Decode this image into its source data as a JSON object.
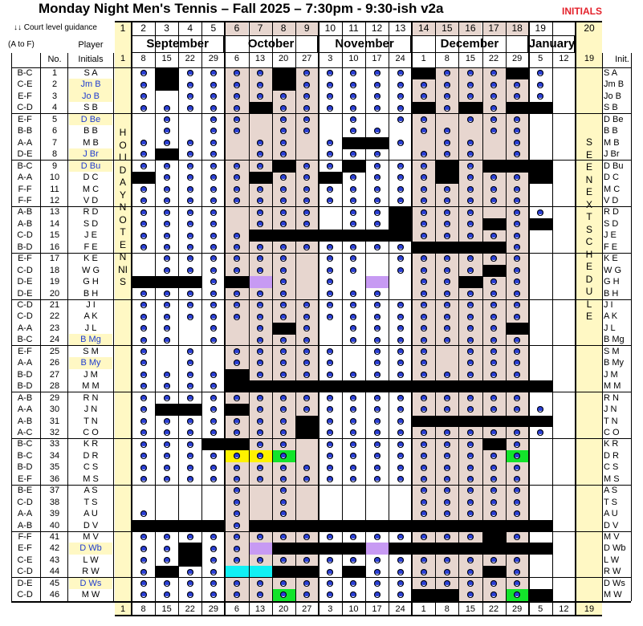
{
  "header": {
    "title": "Monday Night Men's Tennis  –  Fall 2025  –  7:30pm - 9:30-ish   v2a",
    "initials_badge": "INITIALS",
    "guidance": "↓↓ Court level guidance",
    "guidance_range": "(A to F)",
    "col_no": "No.",
    "col_player": "Player",
    "col_initials": "Initials",
    "col_init_right": "Init."
  },
  "weeks": [
    "1",
    "2",
    "3",
    "4",
    "5",
    "6",
    "7",
    "8",
    "9",
    "10",
    "11",
    "12",
    "13",
    "14",
    "15",
    "16",
    "17",
    "18",
    "19",
    "20"
  ],
  "months": [
    {
      "label": "September",
      "start": 1,
      "end": 4
    },
    {
      "label": "October",
      "start": 5,
      "end": 8
    },
    {
      "label": "November",
      "start": 9,
      "end": 12
    },
    {
      "label": "December",
      "start": 13,
      "end": 17
    },
    {
      "label": "January",
      "start": 18,
      "end": 19
    }
  ],
  "days": [
    "8",
    "15",
    "22",
    "29",
    "6",
    "13",
    "20",
    "27",
    "3",
    "10",
    "17",
    "24",
    "1",
    "8",
    "15",
    "22",
    "29",
    "5",
    "12"
  ],
  "first_day": "1",
  "last_day": "19",
  "holiday_text": "HOLIDAY  NO  TENNIS",
  "see_next_text": "SEE  NEXT  SCHEDULE",
  "players": [
    {
      "lvl": "B-C",
      "no": "1",
      "ini": "S A",
      "hl": false,
      "rini": "S A"
    },
    {
      "lvl": "C-E",
      "no": "2",
      "ini": "Jm B",
      "hl": true,
      "rini": "Jm B"
    },
    {
      "lvl": "E-F",
      "no": "3",
      "ini": "Jo B",
      "hl": true,
      "rini": "Jo B"
    },
    {
      "lvl": "C-D",
      "no": "4",
      "ini": "S B",
      "hl": false,
      "rini": "S B"
    },
    {
      "lvl": "E-F",
      "no": "5",
      "ini": "D Be",
      "hl": true,
      "rini": "D Be"
    },
    {
      "lvl": "B-B",
      "no": "6",
      "ini": "B B",
      "hl": false,
      "rini": "B B"
    },
    {
      "lvl": "A-A",
      "no": "7",
      "ini": "M B",
      "hl": false,
      "rini": "M B"
    },
    {
      "lvl": "D-E",
      "no": "8",
      "ini": "J Br",
      "hl": true,
      "rini": "J Br"
    },
    {
      "lvl": "B-C",
      "no": "9",
      "ini": "D Bu",
      "hl": true,
      "rini": "D Bu"
    },
    {
      "lvl": "A-A",
      "no": "10",
      "ini": "D C",
      "hl": false,
      "rini": "D C"
    },
    {
      "lvl": "F-F",
      "no": "11",
      "ini": "M C",
      "hl": false,
      "rini": "M C"
    },
    {
      "lvl": "F-F",
      "no": "12",
      "ini": "V D",
      "hl": false,
      "rini": "V D"
    },
    {
      "lvl": "A-B",
      "no": "13",
      "ini": "R D",
      "hl": false,
      "rini": "R D"
    },
    {
      "lvl": "A-B",
      "no": "14",
      "ini": "S D",
      "hl": false,
      "rini": "S D"
    },
    {
      "lvl": "C-D",
      "no": "15",
      "ini": "J E",
      "hl": false,
      "rini": "J E"
    },
    {
      "lvl": "B-D",
      "no": "16",
      "ini": "F E",
      "hl": false,
      "rini": "F E"
    },
    {
      "lvl": "E-F",
      "no": "17",
      "ini": "K E",
      "hl": false,
      "rini": "K E"
    },
    {
      "lvl": "C-D",
      "no": "18",
      "ini": "W G",
      "hl": false,
      "rini": "W G"
    },
    {
      "lvl": "D-E",
      "no": "19",
      "ini": "G H",
      "hl": false,
      "rini": "G H"
    },
    {
      "lvl": "D-E",
      "no": "20",
      "ini": "B H",
      "hl": false,
      "rini": "B H"
    },
    {
      "lvl": "C-D",
      "no": "21",
      "ini": "J I",
      "hl": false,
      "rini": "J I"
    },
    {
      "lvl": "C-D",
      "no": "22",
      "ini": "A K",
      "hl": false,
      "rini": "A K"
    },
    {
      "lvl": "A-A",
      "no": "23",
      "ini": "J L",
      "hl": false,
      "rini": "J L"
    },
    {
      "lvl": "B-C",
      "no": "24",
      "ini": "B Mg",
      "hl": true,
      "rini": "B Mg"
    },
    {
      "lvl": "E-F",
      "no": "25",
      "ini": "S M",
      "hl": false,
      "rini": "S M"
    },
    {
      "lvl": "A-A",
      "no": "26",
      "ini": "B My",
      "hl": true,
      "rini": "B My"
    },
    {
      "lvl": "B-D",
      "no": "27",
      "ini": "J M",
      "hl": false,
      "rini": "J M"
    },
    {
      "lvl": "B-D",
      "no": "28",
      "ini": "M M",
      "hl": false,
      "rini": "M M"
    },
    {
      "lvl": "A-B",
      "no": "29",
      "ini": "R N",
      "hl": false,
      "rini": "R N"
    },
    {
      "lvl": "A-A",
      "no": "30",
      "ini": "J N",
      "hl": false,
      "rini": "J N"
    },
    {
      "lvl": "A-B",
      "no": "31",
      "ini": "T N",
      "hl": false,
      "rini": "T N"
    },
    {
      "lvl": "A-C",
      "no": "32",
      "ini": "C O",
      "hl": false,
      "rini": "C O"
    },
    {
      "lvl": "B-C",
      "no": "33",
      "ini": "K R",
      "hl": false,
      "rini": "K R"
    },
    {
      "lvl": "B-C",
      "no": "34",
      "ini": "D R",
      "hl": false,
      "rini": "D R"
    },
    {
      "lvl": "B-D",
      "no": "35",
      "ini": "C S",
      "hl": false,
      "rini": "C S"
    },
    {
      "lvl": "E-F",
      "no": "36",
      "ini": "M S",
      "hl": false,
      "rini": "M S"
    },
    {
      "lvl": "B-E",
      "no": "37",
      "ini": "A S",
      "hl": false,
      "rini": "A S"
    },
    {
      "lvl": "C-D",
      "no": "38",
      "ini": "T S",
      "hl": false,
      "rini": "T S"
    },
    {
      "lvl": "A-A",
      "no": "39",
      "ini": "A U",
      "hl": false,
      "rini": "A U"
    },
    {
      "lvl": "A-B",
      "no": "40",
      "ini": "D V",
      "hl": false,
      "rini": "D V"
    },
    {
      "lvl": "F-F",
      "no": "41",
      "ini": "M V",
      "hl": false,
      "rini": "M V"
    },
    {
      "lvl": "E-F",
      "no": "42",
      "ini": "D Wb",
      "hl": true,
      "rini": "D Wb"
    },
    {
      "lvl": "C-E",
      "no": "43",
      "ini": "L W",
      "hl": false,
      "rini": "L W"
    },
    {
      "lvl": "C-D",
      "no": "44",
      "ini": "R W",
      "hl": false,
      "rini": "R W"
    },
    {
      "lvl": "D-E",
      "no": "45",
      "ini": "D Ws",
      "hl": true,
      "rini": "D Ws"
    },
    {
      "lvl": "C-D",
      "no": "46",
      "ini": "M W",
      "hl": false,
      "rini": "M W"
    }
  ],
  "colors": {
    "title_red": "#e4212b",
    "holiday": "#fff8c4",
    "october": "#e7d6cf",
    "december": "#e7d6cf",
    "player_hl": "#fff8c4",
    "player_text_hl": "#1f3ccf",
    "dot": "#2a3fd6",
    "purple": "#c79af3",
    "yellow": "#fff200",
    "green": "#13e42b",
    "cyan": "#11f0f4"
  },
  "schedule": [
    [
      "d",
      "b",
      "d",
      "d",
      "d",
      "d",
      "b",
      "d",
      "d",
      "d",
      "d",
      "d",
      "b",
      "d",
      "d",
      "d",
      "b",
      "d",
      "",
      ""
    ],
    [
      "d",
      "b",
      "d",
      "d",
      "d",
      "d",
      "b",
      "d",
      "d",
      "d",
      "d",
      "d",
      "d",
      "d",
      "d",
      "d",
      "d",
      "d",
      "",
      ""
    ],
    [
      "d",
      "",
      "d",
      "d",
      "d",
      "d",
      "d",
      "d",
      "d",
      "d",
      "d",
      "d",
      "d",
      "d",
      "d",
      "d",
      "d",
      "d",
      "",
      ""
    ],
    [
      "d",
      "d",
      "d",
      "d",
      "d",
      "b",
      "d",
      "d",
      "d",
      "d",
      "d",
      "d",
      "b",
      "d",
      "b",
      "d",
      "b",
      "b",
      "",
      ""
    ],
    [
      "",
      "d",
      "",
      "d",
      "d",
      "",
      "d",
      "d",
      "",
      "d",
      "",
      "d",
      "d",
      "",
      "d",
      "d",
      "d",
      "",
      "",
      ""
    ],
    [
      "",
      "d",
      "",
      "d",
      "d",
      "",
      "d",
      "d",
      "",
      "d",
      "d",
      "",
      "d",
      "d",
      "",
      "d",
      "d",
      "",
      "",
      ""
    ],
    [
      "d",
      "d",
      "d",
      "d",
      "",
      "d",
      "d",
      "",
      "d",
      "b",
      "b",
      "d",
      "",
      "d",
      "d",
      "",
      "d",
      "",
      "",
      ""
    ],
    [
      "d",
      "b",
      "d",
      "d",
      "",
      "d",
      "d",
      "",
      "d",
      "d",
      "d",
      "",
      "d",
      "d",
      "d",
      "",
      "d",
      "",
      "",
      ""
    ],
    [
      "d",
      "d",
      "d",
      "d",
      "d",
      "d",
      "b",
      "d",
      "d",
      "b",
      "d",
      "d",
      "d",
      "b",
      "d",
      "b",
      "b",
      "b",
      "",
      ""
    ],
    [
      "b",
      "d",
      "d",
      "d",
      "d",
      "b",
      "d",
      "d",
      "b",
      "d",
      "d",
      "d",
      "d",
      "b",
      "d",
      "d",
      "d",
      "b",
      "",
      ""
    ],
    [
      "d",
      "d",
      "d",
      "d",
      "d",
      "d",
      "d",
      "d",
      "d",
      "d",
      "d",
      "d",
      "d",
      "d",
      "d",
      "d",
      "d",
      "",
      "",
      ""
    ],
    [
      "d",
      "d",
      "d",
      "d",
      "d",
      "d",
      "d",
      "d",
      "d",
      "d",
      "d",
      "d",
      "d",
      "d",
      "d",
      "d",
      "d",
      "",
      "",
      ""
    ],
    [
      "d",
      "d",
      "d",
      "d",
      "",
      "d",
      "d",
      "d",
      "",
      "d",
      "d",
      "b",
      "d",
      "d",
      "d",
      "",
      "d",
      "d",
      "",
      ""
    ],
    [
      "d",
      "d",
      "d",
      "d",
      "",
      "d",
      "d",
      "d",
      "",
      "d",
      "d",
      "b",
      "d",
      "d",
      "d",
      "b",
      "d",
      "b",
      "",
      ""
    ],
    [
      "d",
      "d",
      "d",
      "d",
      "d",
      "b",
      "b",
      "b",
      "b",
      "b",
      "b",
      "b",
      "d",
      "d",
      "d",
      "d",
      "d",
      "",
      "",
      ""
    ],
    [
      "d",
      "d",
      "d",
      "d",
      "d",
      "d",
      "d",
      "d",
      "d",
      "d",
      "d",
      "d",
      "b",
      "b",
      "b",
      "b",
      "d",
      "",
      "",
      ""
    ],
    [
      "",
      "d",
      "d",
      "d",
      "d",
      "d",
      "d",
      "",
      "d",
      "d",
      "",
      "d",
      "d",
      "d",
      "d",
      "d",
      "d",
      "",
      "",
      ""
    ],
    [
      "",
      "d",
      "d",
      "d",
      "d",
      "d",
      "d",
      "",
      "d",
      "d",
      "",
      "d",
      "d",
      "d",
      "d",
      "b",
      "d",
      "",
      "",
      ""
    ],
    [
      "b",
      "b",
      "b",
      "d",
      "b",
      "p",
      "d",
      "",
      "d",
      "",
      "p",
      "",
      "d",
      "d",
      "b",
      "d",
      "d",
      "",
      "",
      ""
    ],
    [
      "d",
      "d",
      "d",
      "d",
      "d",
      "d",
      "d",
      "",
      "d",
      "d",
      "d",
      "",
      "d",
      "d",
      "d",
      "d",
      "d",
      "",
      "",
      ""
    ],
    [
      "d",
      "d",
      "d",
      "d",
      "d",
      "d",
      "d",
      "d",
      "d",
      "d",
      "d",
      "d",
      "d",
      "d",
      "d",
      "d",
      "d",
      "",
      "",
      ""
    ],
    [
      "d",
      "d",
      "d",
      "d",
      "d",
      "d",
      "d",
      "d",
      "d",
      "d",
      "d",
      "d",
      "d",
      "d",
      "d",
      "d",
      "d",
      "",
      "",
      ""
    ],
    [
      "d",
      "d",
      "",
      "d",
      "",
      "d",
      "b",
      "d",
      "",
      "d",
      "d",
      "d",
      "d",
      "d",
      "d",
      "d",
      "b",
      "",
      "",
      ""
    ],
    [
      "d",
      "d",
      "",
      "d",
      "",
      "d",
      "d",
      "d",
      "",
      "d",
      "d",
      "d",
      "d",
      "d",
      "d",
      "d",
      "d",
      "",
      "",
      ""
    ],
    [
      "d",
      "",
      "d",
      "",
      "d",
      "d",
      "d",
      "d",
      "d",
      "",
      "d",
      "d",
      "d",
      "",
      "d",
      "d",
      "d",
      "",
      "",
      ""
    ],
    [
      "d",
      "",
      "d",
      "",
      "d",
      "d",
      "d",
      "d",
      "d",
      "",
      "d",
      "d",
      "d",
      "",
      "d",
      "d",
      "d",
      "",
      "",
      ""
    ],
    [
      "d",
      "d",
      "d",
      "d",
      "b",
      "d",
      "d",
      "d",
      "d",
      "d",
      "d",
      "d",
      "d",
      "d",
      "d",
      "d",
      "d",
      "",
      "",
      ""
    ],
    [
      "d",
      "d",
      "d",
      "d",
      "b",
      "b",
      "b",
      "b",
      "b",
      "b",
      "b",
      "b",
      "b",
      "b",
      "b",
      "b",
      "b",
      "b",
      "",
      ""
    ],
    [
      "d",
      "d",
      "d",
      "d",
      "d",
      "d",
      "d",
      "d",
      "d",
      "d",
      "d",
      "d",
      "d",
      "d",
      "d",
      "d",
      "d",
      "",
      "",
      ""
    ],
    [
      "d",
      "b",
      "b",
      "d",
      "b",
      "d",
      "d",
      "d",
      "d",
      "d",
      "d",
      "d",
      "d",
      "d",
      "d",
      "d",
      "d",
      "d",
      "",
      ""
    ],
    [
      "d",
      "d",
      "d",
      "d",
      "d",
      "d",
      "d",
      "b",
      "d",
      "d",
      "d",
      "d",
      "b",
      "b",
      "b",
      "b",
      "b",
      "b",
      "",
      ""
    ],
    [
      "d",
      "d",
      "d",
      "d",
      "d",
      "d",
      "d",
      "b",
      "d",
      "d",
      "d",
      "d",
      "d",
      "d",
      "d",
      "d",
      "d",
      "d",
      "",
      ""
    ],
    [
      "d",
      "d",
      "d",
      "b",
      "b",
      "d",
      "d",
      "",
      "d",
      "d",
      "d",
      "d",
      "d",
      "d",
      "d",
      "b",
      "d",
      "",
      "",
      ""
    ],
    [
      "d",
      "d",
      "d",
      "d",
      "y",
      "y",
      "g",
      "",
      "d",
      "d",
      "d",
      "d",
      "d",
      "d",
      "d",
      "d",
      "g",
      "",
      "",
      ""
    ],
    [
      "d",
      "d",
      "d",
      "d",
      "d",
      "d",
      "d",
      "d",
      "d",
      "d",
      "d",
      "d",
      "d",
      "d",
      "d",
      "d",
      "d",
      "",
      "",
      ""
    ],
    [
      "d",
      "d",
      "d",
      "d",
      "d",
      "d",
      "d",
      "d",
      "d",
      "d",
      "d",
      "d",
      "d",
      "d",
      "d",
      "d",
      "d",
      "",
      "",
      ""
    ],
    [
      "",
      "",
      "",
      "",
      "d",
      "",
      "d",
      "",
      "",
      "",
      "",
      "",
      "d",
      "d",
      "d",
      "d",
      "d",
      "",
      "",
      ""
    ],
    [
      "",
      "",
      "",
      "",
      "d",
      "",
      "d",
      "",
      "",
      "",
      "",
      "",
      "d",
      "d",
      "d",
      "d",
      "d",
      "",
      "",
      ""
    ],
    [
      "d",
      "",
      "",
      "",
      "d",
      "",
      "d",
      "",
      "",
      "",
      "",
      "",
      "d",
      "d",
      "d",
      "d",
      "d",
      "",
      "",
      ""
    ],
    [
      "b",
      "b",
      "b",
      "b",
      "d",
      "b",
      "b",
      "b",
      "b",
      "b",
      "b",
      "b",
      "b",
      "b",
      "b",
      "b",
      "b",
      "b",
      "",
      ""
    ],
    [
      "d",
      "d",
      "d",
      "d",
      "d",
      "d",
      "d",
      "d",
      "d",
      "d",
      "d",
      "d",
      "d",
      "d",
      "d",
      "b",
      "d",
      "",
      "",
      ""
    ],
    [
      "d",
      "d",
      "b",
      "d",
      "d",
      "p",
      "b",
      "b",
      "b",
      "b",
      "p",
      "b",
      "b",
      "b",
      "b",
      "b",
      "b",
      "b",
      "",
      ""
    ],
    [
      "d",
      "d",
      "b",
      "d",
      "d",
      "d",
      "d",
      "d",
      "d",
      "d",
      "d",
      "d",
      "d",
      "d",
      "d",
      "d",
      "d",
      "",
      "",
      ""
    ],
    [
      "d",
      "b",
      "d",
      "d",
      "c",
      "c",
      "b",
      "b",
      "d",
      "b",
      "d",
      "d",
      "d",
      "d",
      "d",
      "b",
      "d",
      "",
      "",
      ""
    ],
    [
      "d",
      "d",
      "d",
      "d",
      "d",
      "d",
      "d",
      "d",
      "d",
      "d",
      "d",
      "d",
      "d",
      "d",
      "d",
      "d",
      "d",
      "",
      "",
      ""
    ],
    [
      "d",
      "d",
      "d",
      "d",
      "d",
      "d",
      "g",
      "d",
      "d",
      "d",
      "d",
      "d",
      "b",
      "b",
      "d",
      "d",
      "g",
      "b",
      "",
      ""
    ]
  ]
}
